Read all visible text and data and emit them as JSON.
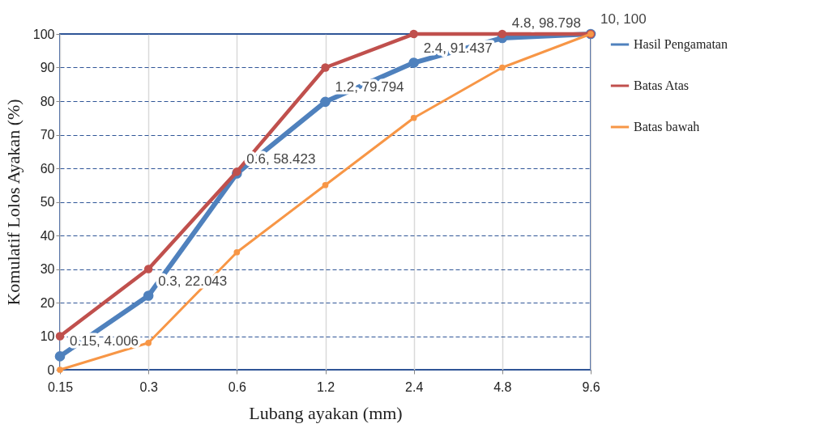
{
  "chart_data": {
    "type": "line",
    "xlabel": "Lubang ayakan (mm)",
    "ylabel": "Komulatif Lolos Ayakan (%)",
    "categories": [
      "0.15",
      "0.3",
      "0.6",
      "1.2",
      "2.4",
      "4.8",
      "9.6"
    ],
    "ylim": [
      0,
      100
    ],
    "yticks": [
      0,
      10,
      20,
      30,
      40,
      50,
      60,
      70,
      80,
      90,
      100
    ],
    "grid": true,
    "legend": "right",
    "marker": "circle",
    "line_style": "solid",
    "series": [
      {
        "name": "Hasil Pengamatan",
        "color": "#4f81bd",
        "values": [
          4.006,
          22.043,
          58.423,
          79.794,
          91.437,
          98.798,
          100
        ],
        "value_labels": [
          "0.15, 4.006",
          "0.3, 22.043",
          "0.6, 58.423",
          "1.2, 79.794",
          "2.4, 91.437",
          "4.8, 98.798",
          "10, 100"
        ]
      },
      {
        "name": "Batas Atas",
        "color": "#c0504d",
        "values": [
          10,
          30,
          59,
          90,
          100,
          100,
          100
        ]
      },
      {
        "name": "Batas bawah",
        "color": "#f79646",
        "values": [
          0,
          8,
          35,
          55,
          75,
          90,
          100
        ]
      }
    ]
  }
}
